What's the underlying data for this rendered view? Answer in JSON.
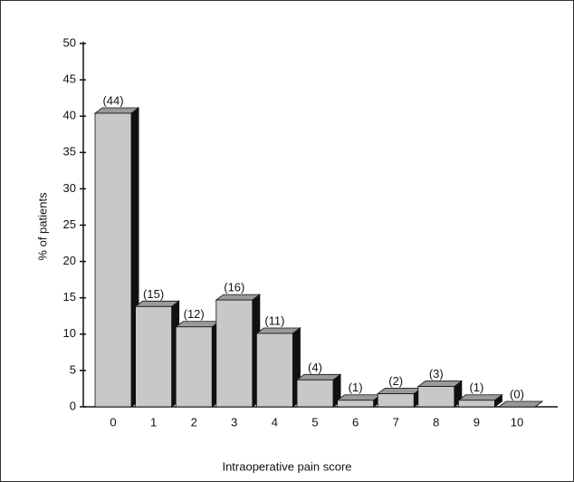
{
  "chart_data": {
    "type": "bar3d",
    "xlabel": "Intraoperative pain score",
    "ylabel": "% of patients",
    "categories": [
      "0",
      "1",
      "2",
      "3",
      "4",
      "5",
      "6",
      "7",
      "8",
      "9",
      "10"
    ],
    "values": [
      40.4,
      13.8,
      11.0,
      14.7,
      10.1,
      3.7,
      0.9,
      1.8,
      2.8,
      0.9,
      0
    ],
    "annotations": [
      "(44)",
      "(15)",
      "(12)",
      "(16)",
      "(11)",
      "(4)",
      "(1)",
      "(2)",
      "(3)",
      "(1)",
      "(0)"
    ],
    "color": "#c8c8c8",
    "ylim": [
      0,
      50
    ],
    "yticks": [
      0,
      5,
      10,
      15,
      20,
      25,
      30,
      35,
      40,
      45,
      50
    ]
  }
}
